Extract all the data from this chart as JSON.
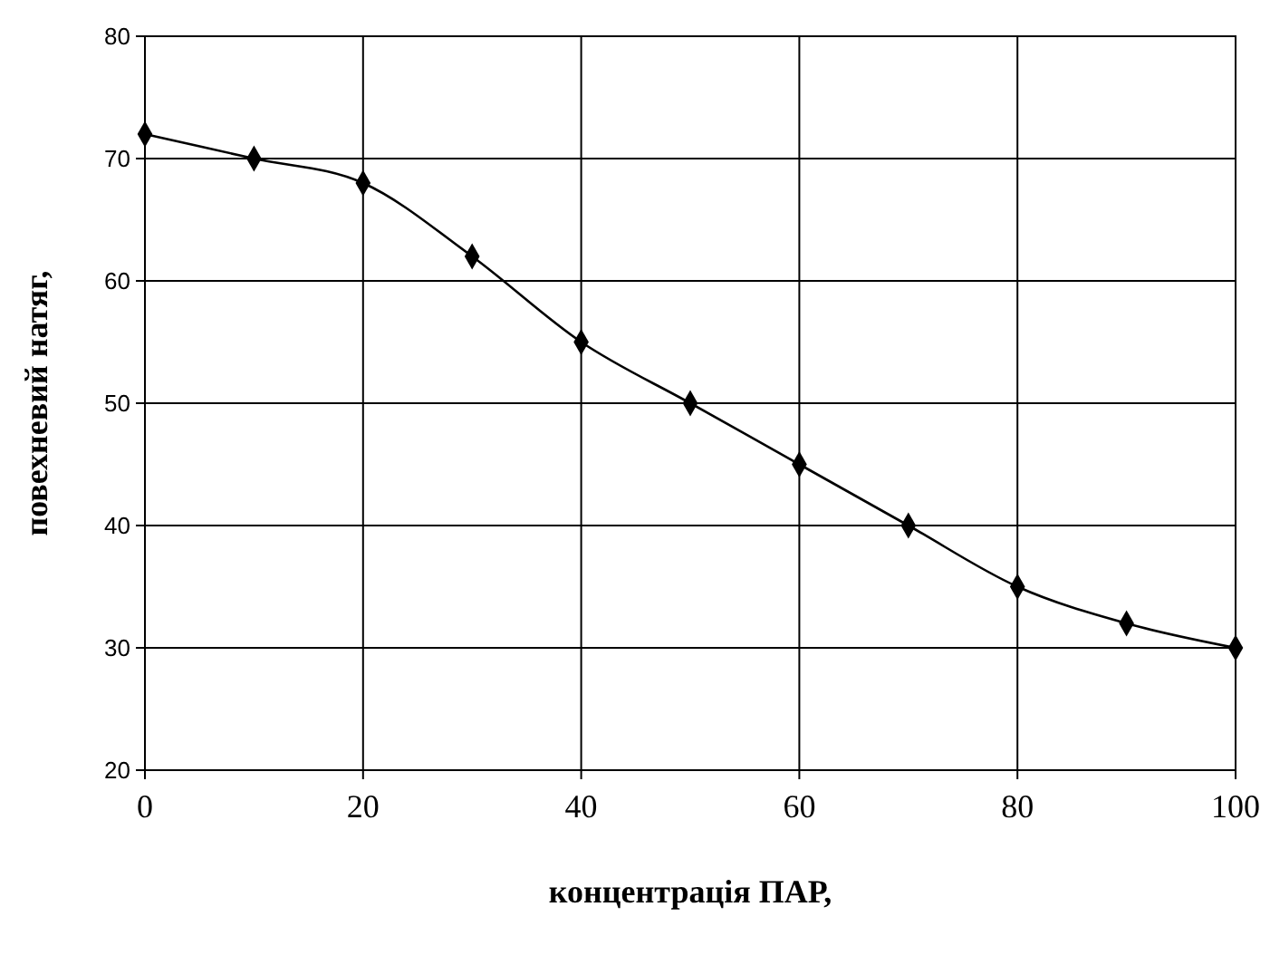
{
  "chart_data": {
    "type": "line",
    "xlabel": "концентрація ПАР,",
    "ylabel": "повехневий натяг,",
    "x": [
      0,
      10,
      20,
      30,
      40,
      50,
      60,
      70,
      80,
      90,
      100
    ],
    "series": [
      {
        "color": "#000000",
        "values": [
          72,
          70,
          68,
          62,
          55,
          50,
          45,
          40,
          35,
          32,
          30
        ]
      }
    ],
    "xlim": [
      0,
      100
    ],
    "xticks": [
      0,
      20,
      40,
      60,
      80,
      100
    ],
    "ylim": [
      20,
      80
    ],
    "yticks": [
      20,
      30,
      40,
      50,
      60,
      70,
      80
    ],
    "grid": true,
    "marker": "diamond",
    "line_style": "solid"
  }
}
